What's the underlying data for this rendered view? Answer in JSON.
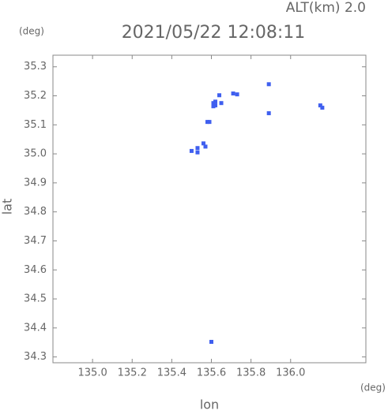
{
  "chart_data": {
    "type": "scatter",
    "title": "2021/05/22 12:08:11",
    "subtitle": "ALT(km) 2.0",
    "x_label": "lon",
    "y_label": "lat",
    "x_unit": "(deg)",
    "y_unit": "(deg)",
    "color": "#3f5fef",
    "xlim": [
      134.8,
      136.38
    ],
    "ylim": [
      34.28,
      35.34
    ],
    "xticks": [
      {
        "value": 135,
        "label": "135.0"
      },
      135.2,
      135.4,
      135.6,
      135.8,
      {
        "value": 136,
        "label": "136.0"
      }
    ],
    "yticks": [
      34.3,
      34.4,
      34.5,
      34.6,
      34.7,
      34.8,
      34.9,
      {
        "value": 35,
        "label": "35.0"
      },
      35.1,
      35.2,
      35.3
    ],
    "x": [
      135.5,
      135.53,
      135.53,
      135.56,
      135.57,
      135.58,
      135.59,
      135.61,
      135.61,
      135.62,
      135.62,
      135.64,
      135.65,
      135.71,
      135.73,
      135.89,
      135.89,
      136.15,
      136.16,
      135.6
    ],
    "values": [
      35.01,
      35.005,
      35.02,
      35.036,
      35.025,
      35.11,
      35.11,
      35.164,
      35.175,
      35.18,
      35.167,
      35.202,
      35.175,
      35.208,
      35.205,
      35.24,
      35.14,
      35.167,
      35.159,
      34.352
    ]
  }
}
